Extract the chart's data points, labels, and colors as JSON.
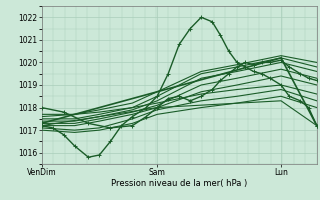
{
  "xlabel": "Pression niveau de la mer( hPa )",
  "ylim": [
    1015.5,
    1022.5
  ],
  "yticks": [
    1016,
    1017,
    1018,
    1019,
    1020,
    1021,
    1022
  ],
  "xtick_labels": [
    "VenDim",
    "Sam",
    "Lun"
  ],
  "xtick_positions": [
    0.0,
    0.42,
    0.87
  ],
  "bg_color": "#cce8d8",
  "grid_color": "#aacebb",
  "line_color": "#1a5c28",
  "series": [
    {
      "x": [
        0.0,
        0.04,
        0.08,
        0.12,
        0.17,
        0.21,
        0.25,
        0.29,
        0.33,
        0.38,
        0.42,
        0.46,
        0.5,
        0.54,
        0.58,
        0.62,
        0.65,
        0.68,
        0.71,
        0.74,
        0.77,
        0.8,
        0.83,
        0.87,
        0.9,
        0.94,
        0.97,
        1.0
      ],
      "y": [
        1017.2,
        1017.1,
        1016.8,
        1016.3,
        1015.8,
        1015.9,
        1016.5,
        1017.2,
        1017.6,
        1018.0,
        1018.5,
        1019.5,
        1020.8,
        1021.5,
        1022.0,
        1021.8,
        1021.2,
        1020.5,
        1020.0,
        1019.8,
        1019.6,
        1019.5,
        1019.3,
        1019.0,
        1018.5,
        1018.3,
        1018.0,
        1017.2
      ],
      "marker": true,
      "lw": 1.0
    },
    {
      "x": [
        0.0,
        0.12,
        0.21,
        0.33,
        0.42,
        0.58,
        0.71,
        0.87,
        1.0
      ],
      "y": [
        1017.5,
        1017.5,
        1017.7,
        1018.0,
        1018.5,
        1019.5,
        1019.8,
        1020.2,
        1019.8
      ],
      "marker": false,
      "lw": 0.8
    },
    {
      "x": [
        0.0,
        0.12,
        0.21,
        0.33,
        0.42,
        0.58,
        0.71,
        0.87,
        1.0
      ],
      "y": [
        1017.6,
        1017.7,
        1017.9,
        1018.2,
        1018.7,
        1019.6,
        1019.9,
        1020.3,
        1020.0
      ],
      "marker": false,
      "lw": 0.8
    },
    {
      "x": [
        0.0,
        0.12,
        0.21,
        0.33,
        0.42,
        0.58,
        0.71,
        0.87,
        1.0
      ],
      "y": [
        1017.4,
        1017.4,
        1017.6,
        1017.9,
        1018.3,
        1019.3,
        1019.6,
        1020.0,
        1019.6
      ],
      "marker": false,
      "lw": 0.8
    },
    {
      "x": [
        0.0,
        0.12,
        0.21,
        0.33,
        0.42,
        0.58,
        0.71,
        0.87,
        1.0
      ],
      "y": [
        1017.3,
        1017.3,
        1017.5,
        1017.8,
        1018.1,
        1019.0,
        1019.3,
        1019.7,
        1019.3
      ],
      "marker": false,
      "lw": 0.8
    },
    {
      "x": [
        0.0,
        0.12,
        0.21,
        0.33,
        0.42,
        0.58,
        0.71,
        0.87,
        1.0
      ],
      "y": [
        1017.2,
        1017.2,
        1017.4,
        1017.7,
        1018.0,
        1018.7,
        1019.0,
        1019.4,
        1019.0
      ],
      "marker": false,
      "lw": 0.8
    },
    {
      "x": [
        0.0,
        0.12,
        0.21,
        0.33,
        0.42,
        0.58,
        0.71,
        0.87,
        1.0
      ],
      "y": [
        1017.7,
        1017.7,
        1017.8,
        1018.0,
        1018.2,
        1018.6,
        1018.8,
        1019.0,
        1018.6
      ],
      "marker": false,
      "lw": 0.8
    },
    {
      "x": [
        0.0,
        0.12,
        0.21,
        0.33,
        0.42,
        0.58,
        0.71,
        0.87,
        1.0
      ],
      "y": [
        1017.1,
        1017.0,
        1017.1,
        1017.5,
        1017.9,
        1018.3,
        1018.5,
        1018.8,
        1018.3
      ],
      "marker": false,
      "lw": 0.8
    },
    {
      "x": [
        0.0,
        0.12,
        0.21,
        0.33,
        0.42,
        0.58,
        0.71,
        0.87,
        1.0
      ],
      "y": [
        1017.0,
        1016.9,
        1017.0,
        1017.3,
        1017.7,
        1018.0,
        1018.2,
        1018.5,
        1018.0
      ],
      "marker": false,
      "lw": 0.8
    },
    {
      "x": [
        0.0,
        0.42,
        0.87,
        1.0
      ],
      "y": [
        1017.2,
        1018.0,
        1018.3,
        1017.2
      ],
      "marker": false,
      "lw": 0.8
    },
    {
      "x": [
        0.0,
        0.87,
        1.0
      ],
      "y": [
        1017.3,
        1020.2,
        1017.2
      ],
      "marker": true,
      "lw": 1.2
    },
    {
      "x": [
        0.0,
        0.08,
        0.17,
        0.25,
        0.33,
        0.38,
        0.42,
        0.46,
        0.5,
        0.54,
        0.58,
        0.62,
        0.65,
        0.68,
        0.71,
        0.74,
        0.77,
        0.8,
        0.83,
        0.87,
        0.9,
        0.94,
        0.97,
        1.0
      ],
      "y": [
        1018.0,
        1017.8,
        1017.3,
        1017.1,
        1017.2,
        1017.6,
        1018.0,
        1018.4,
        1018.5,
        1018.3,
        1018.5,
        1018.8,
        1019.2,
        1019.5,
        1019.8,
        1020.0,
        1019.9,
        1020.0,
        1020.0,
        1020.1,
        1019.8,
        1019.5,
        1019.3,
        1019.2
      ],
      "marker": true,
      "lw": 1.0
    }
  ]
}
